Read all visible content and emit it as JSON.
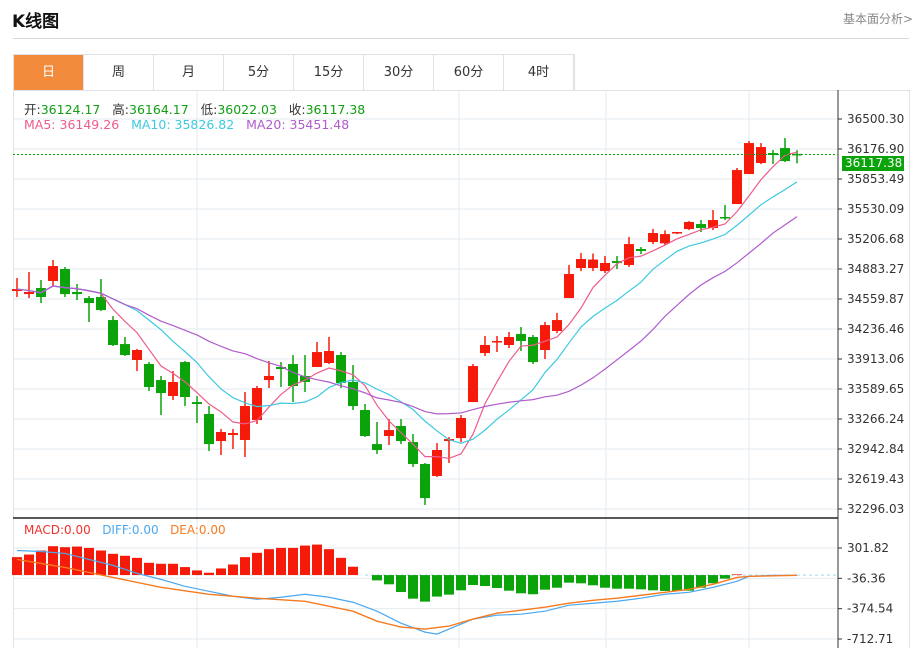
{
  "header": {
    "title": "K线图",
    "more_link": "基本面分析>"
  },
  "tabs": [
    {
      "label": "日",
      "active": true
    },
    {
      "label": "周"
    },
    {
      "label": "月"
    },
    {
      "label": "5分"
    },
    {
      "label": "15分"
    },
    {
      "label": "30分"
    },
    {
      "label": "60分"
    },
    {
      "label": "4时"
    }
  ],
  "ohlc": {
    "open_label": "开:",
    "open": "36124.17",
    "high_label": "高:",
    "high": "36164.17",
    "low_label": "低:",
    "low": "36022.03",
    "close_label": "收:",
    "close": "36117.38"
  },
  "ma": {
    "ma5_label": "MA5:",
    "ma5": "36149.26",
    "ma10_label": "MA10:",
    "ma10": "35826.82",
    "ma20_label": "MA20:",
    "ma20": "35451.48"
  },
  "macd_legend": {
    "macd": "MACD:0.00",
    "diff": "DIFF:0.00",
    "dea": "DEA:0.00"
  },
  "current_price": "36117.38",
  "colors": {
    "up": "#f51a0a",
    "down": "#0aa30a",
    "ma5": "#ef5b8c",
    "ma10": "#3ec9e0",
    "ma20": "#b05ccc",
    "diff": "#4aa8f0",
    "dea": "#f57a20",
    "accent": "#f28b3c"
  },
  "chart_data": {
    "type": "candlestick",
    "price_axis": {
      "ticks": [
        "36500.30",
        "36176.90",
        "35853.49",
        "35530.09",
        "35206.68",
        "34883.27",
        "34559.87",
        "34236.46",
        "33913.06",
        "33589.65",
        "33266.24",
        "32942.84",
        "32619.43",
        "32296.03"
      ],
      "range": [
        32296.03,
        36500.3
      ]
    },
    "macd_axis": {
      "ticks": [
        "301.82",
        "-36.36",
        "-374.54",
        "-712.71"
      ],
      "range": [
        -712.71,
        301.82
      ]
    },
    "candles": [
      [
        34646,
        34786,
        34581,
        34667
      ],
      [
        34613,
        34851,
        34570,
        34635
      ],
      [
        34678,
        34764,
        34516,
        34581
      ],
      [
        34754,
        34980,
        34700,
        34915
      ],
      [
        34883,
        34905,
        34581,
        34613
      ],
      [
        34635,
        34721,
        34549,
        34613
      ],
      [
        34570,
        34592,
        34312,
        34516
      ],
      [
        34581,
        34775,
        34430,
        34441
      ],
      [
        34333,
        34376,
        34053,
        34064
      ],
      [
        34074,
        34150,
        33945,
        33956
      ],
      [
        33902,
        34021,
        33783,
        34010
      ],
      [
        33859,
        33880,
        33568,
        33611
      ],
      [
        33686,
        33730,
        33309,
        33546
      ],
      [
        33514,
        33783,
        33471,
        33665
      ],
      [
        33880,
        33891,
        33406,
        33503
      ],
      [
        33449,
        33514,
        33223,
        33428
      ],
      [
        33320,
        33406,
        32921,
        32996
      ],
      [
        33029,
        33158,
        32878,
        33126
      ],
      [
        33094,
        33158,
        32943,
        33115
      ],
      [
        33040,
        33557,
        32856,
        33406
      ],
      [
        33255,
        33622,
        33212,
        33600
      ],
      [
        33686,
        33891,
        33600,
        33730
      ],
      [
        33827,
        33880,
        33611,
        33805
      ],
      [
        33859,
        33956,
        33449,
        33622
      ],
      [
        33730,
        33956,
        33557,
        33665
      ],
      [
        33827,
        34096,
        33827,
        33988
      ],
      [
        33870,
        34150,
        33859,
        33999
      ],
      [
        33956,
        33988,
        33600,
        33654
      ],
      [
        33665,
        33848,
        33363,
        33406
      ],
      [
        33363,
        33428,
        33072,
        33083
      ],
      [
        32996,
        33234,
        32889,
        32932
      ],
      [
        33083,
        33266,
        32986,
        33147
      ],
      [
        33191,
        33266,
        32996,
        33029
      ],
      [
        33018,
        33104,
        32749,
        32781
      ],
      [
        32781,
        32792,
        32339,
        32414
      ],
      [
        32652,
        33007,
        32641,
        32932
      ],
      [
        33029,
        33072,
        32792,
        33050
      ],
      [
        33061,
        33309,
        33018,
        33277
      ],
      [
        33449,
        33859,
        33449,
        33837
      ],
      [
        33977,
        34161,
        33945,
        34064
      ],
      [
        34096,
        34161,
        33988,
        34107
      ],
      [
        34064,
        34204,
        34031,
        34150
      ],
      [
        34182,
        34258,
        33999,
        34107
      ],
      [
        34150,
        34172,
        33859,
        33880
      ],
      [
        34010,
        34312,
        33913,
        34279
      ],
      [
        34215,
        34409,
        34193,
        34333
      ],
      [
        34570,
        34926,
        34570,
        34829
      ],
      [
        34894,
        35055,
        34861,
        34991
      ],
      [
        34894,
        35050,
        34861,
        34985
      ],
      [
        34861,
        35023,
        34840,
        34948
      ],
      [
        34969,
        35023,
        34883,
        34948
      ],
      [
        34926,
        35228,
        34905,
        35152
      ],
      [
        35099,
        35120,
        35045,
        35077
      ],
      [
        35174,
        35314,
        35152,
        35271
      ],
      [
        35160,
        35300,
        35140,
        35260
      ],
      [
        35271,
        35282,
        35260,
        35282
      ],
      [
        35314,
        35400,
        35303,
        35390
      ],
      [
        35368,
        35411,
        35282,
        35325
      ],
      [
        35325,
        35519,
        35303,
        35411
      ],
      [
        35444,
        35573,
        35411,
        35433
      ],
      [
        35584,
        35972,
        35584,
        35950
      ],
      [
        35907,
        36263,
        35907,
        36241
      ],
      [
        36026,
        36241,
        36015,
        36198
      ],
      [
        36133,
        36166,
        36015,
        36112
      ],
      [
        36187,
        36295,
        36036,
        36047
      ],
      [
        36124.17,
        36164.17,
        36022.03,
        36117.38
      ]
    ],
    "macd_hist": [
      200,
      229,
      274,
      322,
      311,
      318,
      303,
      274,
      237,
      215,
      192,
      137,
      126,
      126,
      89,
      52,
      26,
      74,
      118,
      200,
      248,
      289,
      303,
      303,
      329,
      340,
      289,
      192,
      93,
      0,
      -59,
      -103,
      -189,
      -263,
      -296,
      -240,
      -218,
      -170,
      -111,
      -122,
      -144,
      -174,
      -203,
      -214,
      -163,
      -141,
      -85,
      -92,
      -114,
      -141,
      -152,
      -152,
      -159,
      -170,
      -177,
      -177,
      -174,
      -141,
      -92,
      -40,
      8,
      0,
      0,
      0,
      0,
      0
    ],
    "diff": [
      [
        0,
        274
      ],
      [
        2,
        263
      ],
      [
        4,
        241
      ],
      [
        6,
        174
      ],
      [
        8,
        108
      ],
      [
        10,
        19
      ],
      [
        12,
        -48
      ],
      [
        14,
        -125
      ],
      [
        16,
        -181
      ],
      [
        18,
        -236
      ],
      [
        20,
        -270
      ],
      [
        22,
        -247
      ],
      [
        24,
        -214
      ],
      [
        26,
        -247
      ],
      [
        28,
        -303
      ],
      [
        30,
        -403
      ],
      [
        32,
        -536
      ],
      [
        34,
        -636
      ],
      [
        35,
        -658
      ],
      [
        36,
        -602
      ],
      [
        38,
        -491
      ],
      [
        40,
        -447
      ],
      [
        42,
        -436
      ],
      [
        44,
        -403
      ],
      [
        46,
        -336
      ],
      [
        48,
        -314
      ],
      [
        50,
        -292
      ],
      [
        52,
        -258
      ],
      [
        54,
        -214
      ],
      [
        56,
        -192
      ],
      [
        58,
        -137
      ],
      [
        60,
        -70
      ],
      [
        61,
        -14
      ],
      [
        63,
        -3
      ],
      [
        65,
        -3
      ]
    ],
    "dea": [
      [
        0,
        174
      ],
      [
        4,
        85
      ],
      [
        8,
        -26
      ],
      [
        12,
        -137
      ],
      [
        16,
        -214
      ],
      [
        20,
        -258
      ],
      [
        24,
        -292
      ],
      [
        28,
        -403
      ],
      [
        30,
        -514
      ],
      [
        32,
        -580
      ],
      [
        34,
        -602
      ],
      [
        36,
        -569
      ],
      [
        38,
        -491
      ],
      [
        40,
        -425
      ],
      [
        42,
        -392
      ],
      [
        44,
        -358
      ],
      [
        46,
        -314
      ],
      [
        48,
        -281
      ],
      [
        50,
        -258
      ],
      [
        52,
        -225
      ],
      [
        54,
        -192
      ],
      [
        56,
        -159
      ],
      [
        58,
        -103
      ],
      [
        60,
        -26
      ],
      [
        61,
        -14
      ],
      [
        65,
        -3
      ]
    ]
  }
}
